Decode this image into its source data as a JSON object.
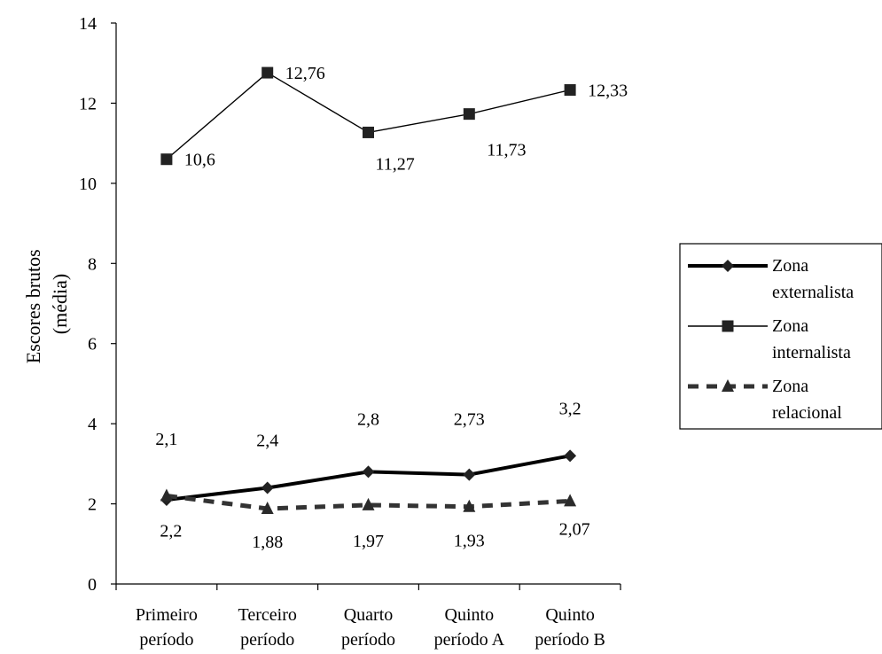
{
  "chart_data": {
    "type": "line",
    "ylabel_lines": [
      "Escores brutos",
      "(média)"
    ],
    "categories": [
      [
        "Primeiro",
        "período"
      ],
      [
        "Terceiro",
        "período"
      ],
      [
        "Quarto",
        "período"
      ],
      [
        "Quinto",
        "período A"
      ],
      [
        "Quinto",
        "período B"
      ]
    ],
    "ylim": [
      0,
      14
    ],
    "yticks": [
      0,
      2,
      4,
      6,
      8,
      10,
      12,
      14
    ],
    "grid": false,
    "legend_position": "right",
    "series": [
      {
        "name_lines": [
          "Zona",
          "externalista"
        ],
        "values": [
          2.1,
          2.4,
          2.8,
          2.73,
          3.2
        ],
        "labels": [
          "2,1",
          "2,4",
          "2,8",
          "2,73",
          "3,2"
        ],
        "marker": "diamond",
        "line_style": "solid-thick",
        "color": "#000000"
      },
      {
        "name_lines": [
          "Zona",
          "internalista"
        ],
        "values": [
          10.6,
          12.76,
          11.27,
          11.73,
          12.33
        ],
        "labels": [
          "10,6",
          "12,76",
          "11,27",
          "11,73",
          "12,33"
        ],
        "marker": "square",
        "line_style": "solid-thin",
        "color": "#000000"
      },
      {
        "name_lines": [
          "Zona",
          "relacional"
        ],
        "values": [
          2.2,
          1.88,
          1.97,
          1.93,
          2.07
        ],
        "labels": [
          "2,2",
          "1,88",
          "1,97",
          "1,93",
          "2,07"
        ],
        "marker": "triangle",
        "line_style": "dashed-thick",
        "color": "#333333"
      }
    ]
  }
}
